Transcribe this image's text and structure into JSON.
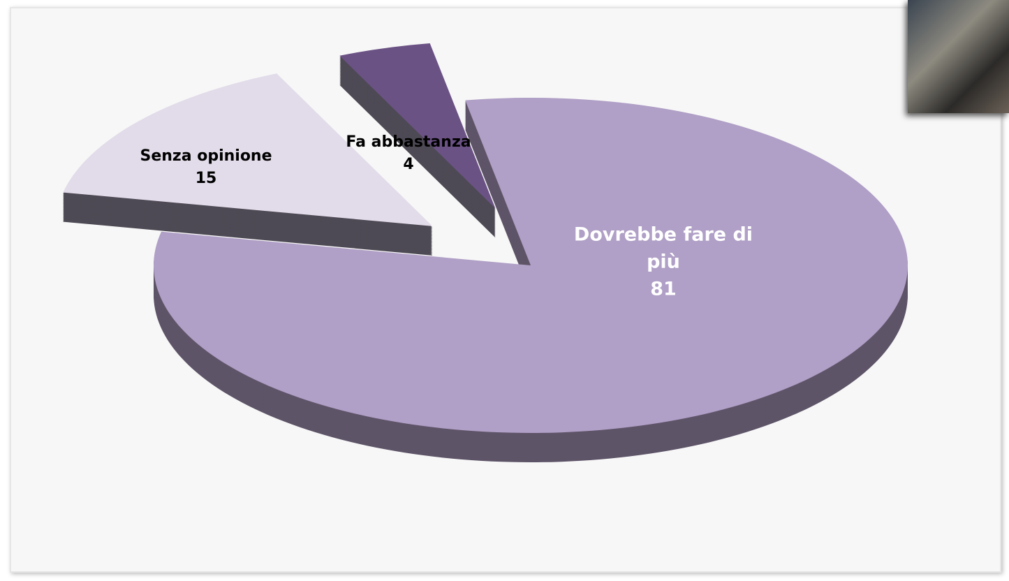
{
  "chart_data": {
    "type": "pie",
    "categories": [
      "Dovrebbe fare di più",
      "Senza opinione",
      "Fa abbastanza"
    ],
    "values": [
      81,
      15,
      4
    ],
    "colors": [
      "#b09fc6",
      "#e2dbe9",
      "#6b5285"
    ]
  }
}
